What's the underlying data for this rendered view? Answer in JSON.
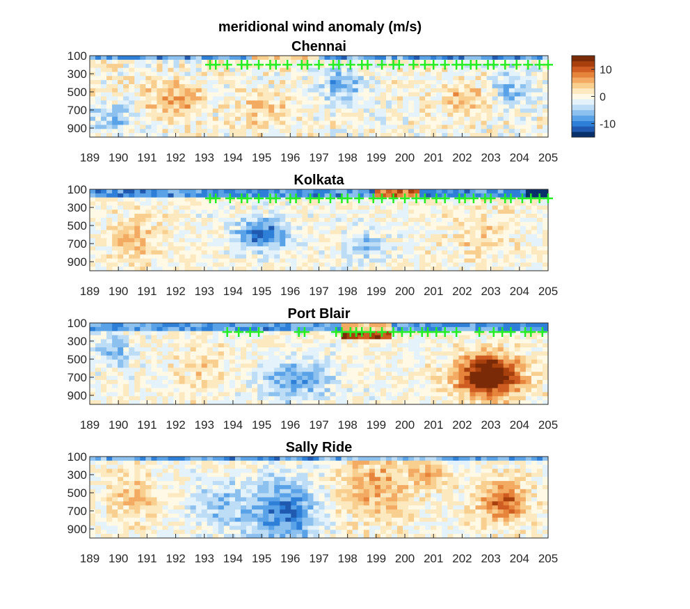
{
  "figure": {
    "title": "meridional wind anomaly (m/s)"
  },
  "colorbar": {
    "ticks": [
      10,
      0,
      -10
    ],
    "range": [
      -15,
      15
    ],
    "colors": [
      "#08306b",
      "#1f5ab0",
      "#2e7fd8",
      "#5aa2e8",
      "#8cc0ee",
      "#bddcf5",
      "#e3f2fb",
      "#fff9e6",
      "#fde9bf",
      "#f9cf8f",
      "#f3ab63",
      "#e7843c",
      "#cf5c20",
      "#a8400e",
      "#7a2a06"
    ]
  },
  "chart_data": [
    {
      "type": "heatmap",
      "title": "Chennai",
      "x_ticks": [
        "189",
        "190",
        "191",
        "192",
        "193",
        "194",
        "195",
        "196",
        "197",
        "198",
        "199",
        "200",
        "201",
        "202",
        "203",
        "204",
        "205"
      ],
      "y_ticks": [
        100,
        300,
        500,
        700,
        900
      ],
      "ylim": [
        1000,
        100
      ],
      "markers": {
        "symbol": "+",
        "color": "#22ee22",
        "level": 200,
        "x": [
          193.2,
          193.4,
          193.8,
          194.3,
          194.5,
          194.9,
          195.3,
          195.5,
          195.9,
          196.4,
          196.6,
          197.0,
          197.5,
          197.7,
          198.1,
          198.5,
          198.7,
          199.2,
          199.6,
          199.8,
          200.3,
          200.7,
          201.0,
          201.4,
          201.8,
          202.0,
          202.3,
          202.5,
          202.9,
          203.1,
          203.5,
          203.9,
          204.3,
          204.7,
          205.0
        ]
      }
    },
    {
      "type": "heatmap",
      "title": "Kolkata",
      "x_ticks": [
        "189",
        "190",
        "191",
        "192",
        "193",
        "194",
        "195",
        "196",
        "197",
        "198",
        "199",
        "200",
        "201",
        "202",
        "203",
        "204",
        "205"
      ],
      "y_ticks": [
        100,
        300,
        500,
        700,
        900
      ],
      "ylim": [
        1000,
        100
      ],
      "markers": {
        "symbol": "+",
        "color": "#22ee22",
        "level": 200,
        "x": [
          193.2,
          193.4,
          193.9,
          194.3,
          194.5,
          194.9,
          195.3,
          195.5,
          196.0,
          196.2,
          196.7,
          197.0,
          197.4,
          197.8,
          198.0,
          198.4,
          198.9,
          199.2,
          199.6,
          200.0,
          200.4,
          200.7,
          201.1,
          201.4,
          201.9,
          202.1,
          202.4,
          202.8,
          203.0,
          203.5,
          203.7,
          204.1,
          204.4,
          204.7,
          205.0
        ]
      }
    },
    {
      "type": "heatmap",
      "title": "Port Blair",
      "x_ticks": [
        "189",
        "190",
        "191",
        "192",
        "193",
        "194",
        "195",
        "196",
        "197",
        "198",
        "199",
        "200",
        "201",
        "202",
        "203",
        "204",
        "205"
      ],
      "y_ticks": [
        100,
        300,
        500,
        700,
        900
      ],
      "ylim": [
        1000,
        100
      ],
      "markers": {
        "symbol": "+",
        "color": "#22ee22",
        "level": 200,
        "x": [
          193.8,
          194.2,
          194.6,
          194.9,
          196.3,
          196.5,
          197.6,
          197.8,
          198.1,
          198.3,
          198.5,
          198.8,
          199.2,
          199.6,
          199.9,
          200.2,
          200.6,
          200.8,
          201.1,
          201.4,
          201.8,
          202.6,
          203.1,
          203.4,
          203.7,
          204.2,
          204.4,
          204.8
        ]
      }
    },
    {
      "type": "heatmap",
      "title": "Sally Ride",
      "x_ticks": [
        "189",
        "190",
        "191",
        "192",
        "193",
        "194",
        "195",
        "196",
        "197",
        "198",
        "199",
        "200",
        "201",
        "202",
        "203",
        "204",
        "205"
      ],
      "y_ticks": [
        100,
        300,
        500,
        700,
        900
      ],
      "ylim": [
        1000,
        100
      ]
    }
  ]
}
